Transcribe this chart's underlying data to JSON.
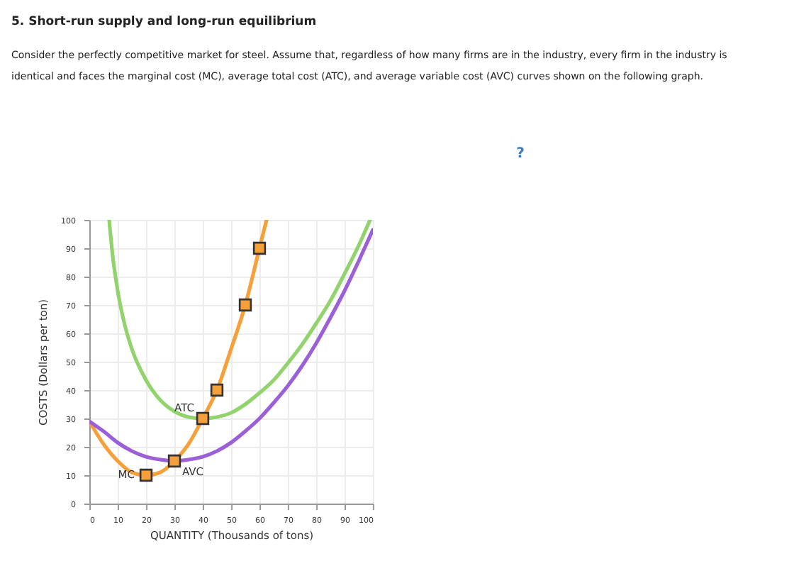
{
  "chart_data": {
    "type": "line",
    "title": "5. Short-run supply and long-run equilibrium",
    "subtitle": "Consider the perfectly competitive market for steel. Assume that, regardless of how many firms are in the industry, every firm in the industry is identical and faces the marginal cost (MC), average total cost (ATC), and average variable cost (AVC) curves shown on the following graph.",
    "xlabel": "QUANTITY (Thousands of tons)",
    "ylabel": "COSTS (Dollars per ton)",
    "xlim": [
      0,
      100
    ],
    "ylim": [
      0,
      100
    ],
    "xticks": [
      0,
      10,
      20,
      30,
      40,
      50,
      60,
      70,
      80,
      90,
      100
    ],
    "yticks": [
      0,
      10,
      20,
      30,
      40,
      50,
      60,
      70,
      80,
      90,
      100
    ],
    "grid": true,
    "marker": "none",
    "line_style": "solid",
    "annotations": [
      "?"
    ],
    "series": [
      {
        "name": "MC",
        "color": "#f6a03c",
        "x": [
          0,
          5,
          10,
          15,
          20,
          25,
          30,
          35,
          40,
          45,
          50,
          55,
          60,
          62.5
        ],
        "values": [
          29,
          21,
          15,
          11,
          10,
          11,
          15,
          21,
          30,
          40,
          54.5,
          70,
          90,
          100
        ]
      },
      {
        "name": "ATC",
        "color": "#92d36e",
        "x": [
          7,
          8,
          10,
          12,
          15,
          20,
          25,
          30,
          35,
          40,
          45,
          50,
          55,
          60,
          65,
          70,
          75,
          80,
          85,
          90,
          95,
          99
        ],
        "values": [
          100,
          89.5,
          75,
          65,
          54.5,
          43.5,
          36.5,
          32.5,
          30.5,
          30,
          30.5,
          32,
          35,
          39,
          43.5,
          49.5,
          56,
          63.5,
          71.5,
          81,
          91,
          100
        ]
      },
      {
        "name": "AVC",
        "color": "#9b5fd7",
        "x": [
          0,
          5,
          10,
          15,
          20,
          25,
          30,
          35,
          40,
          45,
          50,
          55,
          60,
          65,
          70,
          75,
          80,
          85,
          90,
          95,
          100
        ],
        "values": [
          29,
          25.5,
          21.5,
          18.5,
          16.5,
          15.5,
          15,
          15.5,
          16.5,
          18.5,
          21.5,
          25.5,
          30,
          35.5,
          41.5,
          48.5,
          56.5,
          65.5,
          75,
          85.5,
          96.5
        ]
      },
      {
        "type": "scatter",
        "color": "#f6a03c",
        "marker": "square",
        "x": [
          20,
          30,
          40,
          45,
          55,
          60
        ],
        "values": [
          10,
          15,
          30,
          40,
          70,
          90
        ]
      }
    ]
  }
}
